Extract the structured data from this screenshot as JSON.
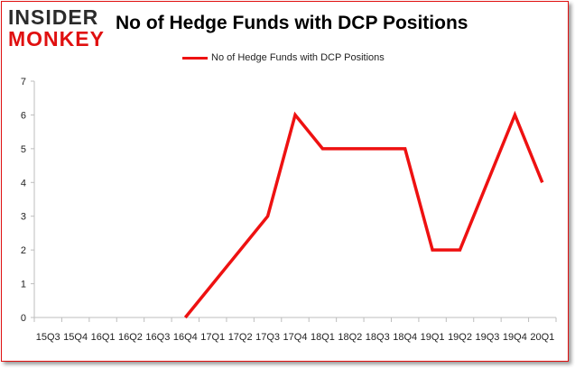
{
  "logo": {
    "line1": "INSIDER",
    "line2": "MONKEY"
  },
  "chart_data": {
    "type": "line",
    "title": "No of Hedge Funds with DCP Positions",
    "legend_position": "top-center",
    "categories": [
      "15Q3",
      "15Q4",
      "16Q1",
      "16Q2",
      "16Q3",
      "16Q4",
      "17Q1",
      "17Q2",
      "17Q3",
      "17Q4",
      "18Q1",
      "18Q2",
      "18Q3",
      "18Q4",
      "19Q1",
      "19Q2",
      "19Q3",
      "19Q4",
      "20Q1"
    ],
    "series": [
      {
        "name": "No of Hedge Funds with DCP Positions",
        "color": "#ee1111",
        "values": [
          null,
          null,
          null,
          null,
          null,
          0,
          1,
          2,
          3,
          6,
          5,
          5,
          5,
          5,
          2,
          2,
          4,
          6,
          4
        ]
      }
    ],
    "ylim": [
      0,
      7
    ],
    "yticks": [
      0,
      1,
      2,
      3,
      4,
      5,
      6,
      7
    ],
    "grid": false
  }
}
